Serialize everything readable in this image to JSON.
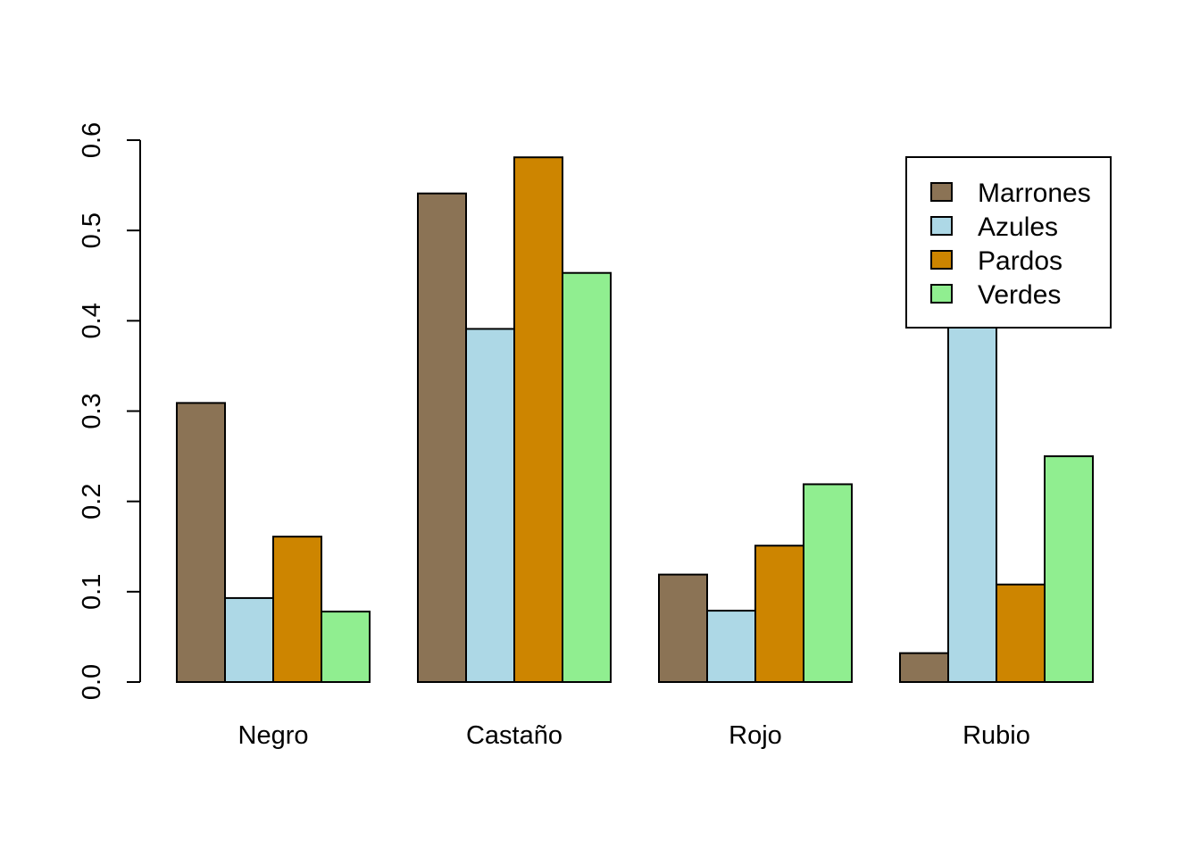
{
  "chart_data": {
    "type": "bar",
    "mode": "grouped",
    "categories": [
      "Negro",
      "Castaño",
      "Rojo",
      "Rubio"
    ],
    "series": [
      {
        "name": "Marrones",
        "color": "#8B7355",
        "values": [
          0.309,
          0.541,
          0.119,
          0.032
        ]
      },
      {
        "name": "Azules",
        "color": "#ADD8E6",
        "values": [
          0.093,
          0.391,
          0.079,
          0.438
        ]
      },
      {
        "name": "Pardos",
        "color": "#CD8500",
        "values": [
          0.161,
          0.581,
          0.151,
          0.108
        ]
      },
      {
        "name": "Verdes",
        "color": "#90EE90",
        "values": [
          0.078,
          0.453,
          0.219,
          0.25
        ]
      }
    ],
    "y_ticks": [
      "0.0",
      "0.1",
      "0.2",
      "0.3",
      "0.4",
      "0.5",
      "0.6"
    ],
    "ylim": [
      0,
      0.6
    ],
    "title": "",
    "xlabel": "",
    "ylabel": "",
    "grid": false,
    "legend_position": "top-right"
  }
}
